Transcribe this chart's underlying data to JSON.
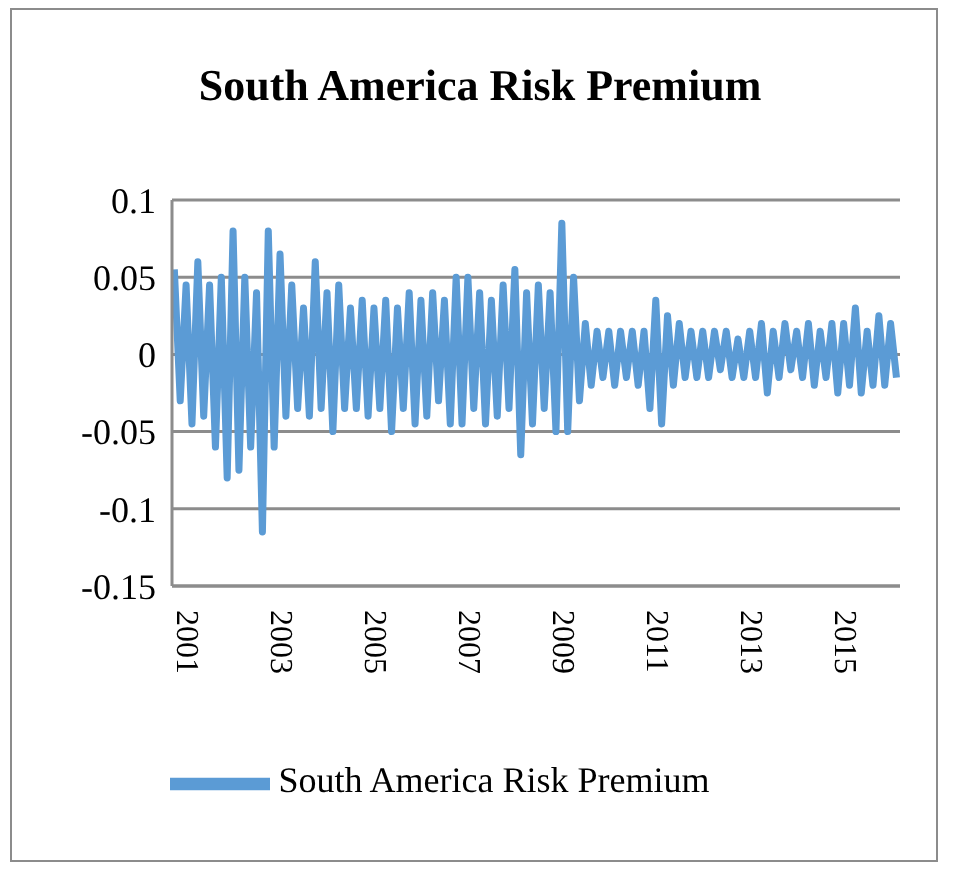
{
  "chart_data": {
    "type": "line",
    "title": "South America Risk Premium",
    "x": [
      2000.75,
      2000.875,
      2001.0,
      2001.125,
      2001.25,
      2001.375,
      2001.5,
      2001.625,
      2001.75,
      2001.875,
      2002.0,
      2002.125,
      2002.25,
      2002.375,
      2002.5,
      2002.625,
      2002.75,
      2002.875,
      2003.0,
      2003.125,
      2003.25,
      2003.375,
      2003.5,
      2003.625,
      2003.75,
      2003.875,
      2004.0,
      2004.125,
      2004.25,
      2004.375,
      2004.5,
      2004.625,
      2004.75,
      2004.875,
      2005.0,
      2005.125,
      2005.25,
      2005.375,
      2005.5,
      2005.625,
      2005.75,
      2005.875,
      2006.0,
      2006.125,
      2006.25,
      2006.375,
      2006.5,
      2006.625,
      2006.75,
      2006.875,
      2007.0,
      2007.125,
      2007.25,
      2007.375,
      2007.5,
      2007.625,
      2007.75,
      2007.875,
      2008.0,
      2008.125,
      2008.25,
      2008.375,
      2008.5,
      2008.625,
      2008.75,
      2008.875,
      2009.0,
      2009.125,
      2009.25,
      2009.375,
      2009.5,
      2009.625,
      2009.75,
      2009.875,
      2010.0,
      2010.125,
      2010.25,
      2010.375,
      2010.5,
      2010.625,
      2010.75,
      2010.875,
      2011.0,
      2011.125,
      2011.25,
      2011.375,
      2011.5,
      2011.625,
      2011.75,
      2011.875,
      2012.0,
      2012.125,
      2012.25,
      2012.375,
      2012.5,
      2012.625,
      2012.75,
      2012.875,
      2013.0,
      2013.125,
      2013.25,
      2013.375,
      2013.5,
      2013.625,
      2013.75,
      2013.875,
      2014.0,
      2014.125,
      2014.25,
      2014.375,
      2014.5,
      2014.625,
      2014.75,
      2014.875,
      2015.0,
      2015.125,
      2015.25,
      2015.375,
      2015.5,
      2015.625,
      2015.75,
      2015.875,
      2016.0,
      2016.125
    ],
    "series": [
      {
        "name": "South America Risk Premium",
        "color": "#5b9bd5",
        "values": [
          0.055,
          -0.03,
          0.045,
          -0.045,
          0.06,
          -0.04,
          0.045,
          -0.06,
          0.05,
          -0.08,
          0.08,
          -0.075,
          0.05,
          -0.06,
          0.04,
          -0.115,
          0.08,
          -0.06,
          0.065,
          -0.04,
          0.045,
          -0.035,
          0.03,
          -0.04,
          0.06,
          -0.035,
          0.04,
          -0.05,
          0.045,
          -0.035,
          0.03,
          -0.035,
          0.035,
          -0.04,
          0.03,
          -0.035,
          0.035,
          -0.05,
          0.03,
          -0.035,
          0.04,
          -0.045,
          0.035,
          -0.04,
          0.04,
          -0.03,
          0.035,
          -0.045,
          0.05,
          -0.045,
          0.05,
          -0.035,
          0.04,
          -0.045,
          0.035,
          -0.04,
          0.045,
          -0.035,
          0.055,
          -0.065,
          0.04,
          -0.045,
          0.045,
          -0.035,
          0.04,
          -0.05,
          0.085,
          -0.05,
          0.05,
          -0.03,
          0.02,
          -0.02,
          0.015,
          -0.015,
          0.015,
          -0.02,
          0.015,
          -0.015,
          0.015,
          -0.02,
          0.015,
          -0.035,
          0.035,
          -0.045,
          0.025,
          -0.02,
          0.02,
          -0.015,
          0.015,
          -0.015,
          0.015,
          -0.015,
          0.015,
          -0.01,
          0.015,
          -0.015,
          0.01,
          -0.015,
          0.015,
          -0.015,
          0.02,
          -0.025,
          0.015,
          -0.015,
          0.02,
          -0.01,
          0.015,
          -0.015,
          0.02,
          -0.02,
          0.015,
          -0.015,
          0.02,
          -0.025,
          0.02,
          -0.02,
          0.03,
          -0.025,
          0.015,
          -0.02,
          0.025,
          -0.02,
          0.02,
          -0.015
        ]
      }
    ],
    "xlim": [
      2000.7,
      2016.2
    ],
    "xticks": [
      2001,
      2003,
      2005,
      2007,
      2009,
      2011,
      2013,
      2015
    ],
    "ylim": [
      -0.15,
      0.1
    ],
    "yticks": [
      -0.15,
      -0.1,
      -0.05,
      0,
      0.05,
      0.1
    ],
    "grid": "y",
    "legend": "bottom",
    "marker": "none",
    "line_style": "solid"
  }
}
